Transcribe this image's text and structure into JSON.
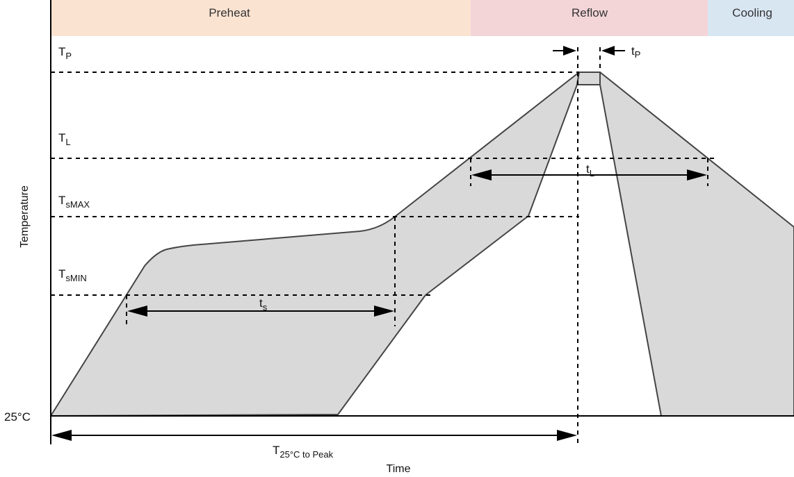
{
  "zones": {
    "preheat": "Preheat",
    "reflow": "Reflow",
    "cooling": "Cooling"
  },
  "colors": {
    "preheat": "#FBE3D2",
    "reflow": "#F3D5D8",
    "cooling": "#D8E6F2",
    "fill": "#D9D9D9",
    "stroke": "#444444"
  },
  "levels": {
    "tp": {
      "main": "T",
      "sub": "P"
    },
    "tl": {
      "main": "T",
      "sub": "L"
    },
    "tsmax": {
      "main": "T",
      "sub": "sMAX"
    },
    "tsmin": {
      "main": "T",
      "sub": "sMIN"
    },
    "base": "25°C"
  },
  "durations": {
    "tp": {
      "main": "t",
      "sub": "P"
    },
    "tl": {
      "main": "t",
      "sub": "L"
    },
    "ts": {
      "main": "t",
      "sub": "s"
    },
    "total": {
      "main": "T",
      "sub": "25°C to Peak"
    }
  },
  "axes": {
    "x": "Time",
    "y": "Temperature"
  }
}
